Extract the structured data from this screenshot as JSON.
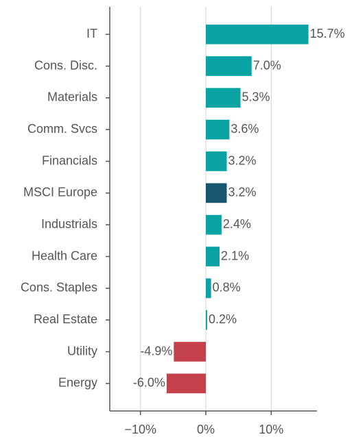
{
  "chart_data": {
    "type": "barh",
    "categories": [
      "IT",
      "Cons. Disc.",
      "Materials",
      "Comm. Svcs",
      "Financials",
      "MSCI Europe",
      "Industrials",
      "Health Care",
      "Cons. Staples",
      "Real Estate",
      "Utility",
      "Energy"
    ],
    "values": [
      15.7,
      7.0,
      5.3,
      3.6,
      3.2,
      3.2,
      2.4,
      2.1,
      0.8,
      0.2,
      -4.9,
      -6.0
    ],
    "value_labels": [
      "15.7%",
      "7.0%",
      "5.3%",
      "3.6%",
      "3.2%",
      "3.2%",
      "2.4%",
      "2.1%",
      "0.8%",
      "0.2%",
      "-4.9%",
      "-6.0%"
    ],
    "colors": [
      "#0aa3a3",
      "#0aa3a3",
      "#0aa3a3",
      "#0aa3a3",
      "#0aa3a3",
      "#17566e",
      "#0aa3a3",
      "#0aa3a3",
      "#0aa3a3",
      "#0aa3a3",
      "#c4414b",
      "#c4414b"
    ],
    "xlim": [
      -14.7,
      17
    ],
    "xticks": [
      {
        "value": -10,
        "label": "−10%"
      },
      {
        "value": 0,
        "label": "0%"
      },
      {
        "value": 10,
        "label": "10%"
      }
    ],
    "grid": true
  }
}
